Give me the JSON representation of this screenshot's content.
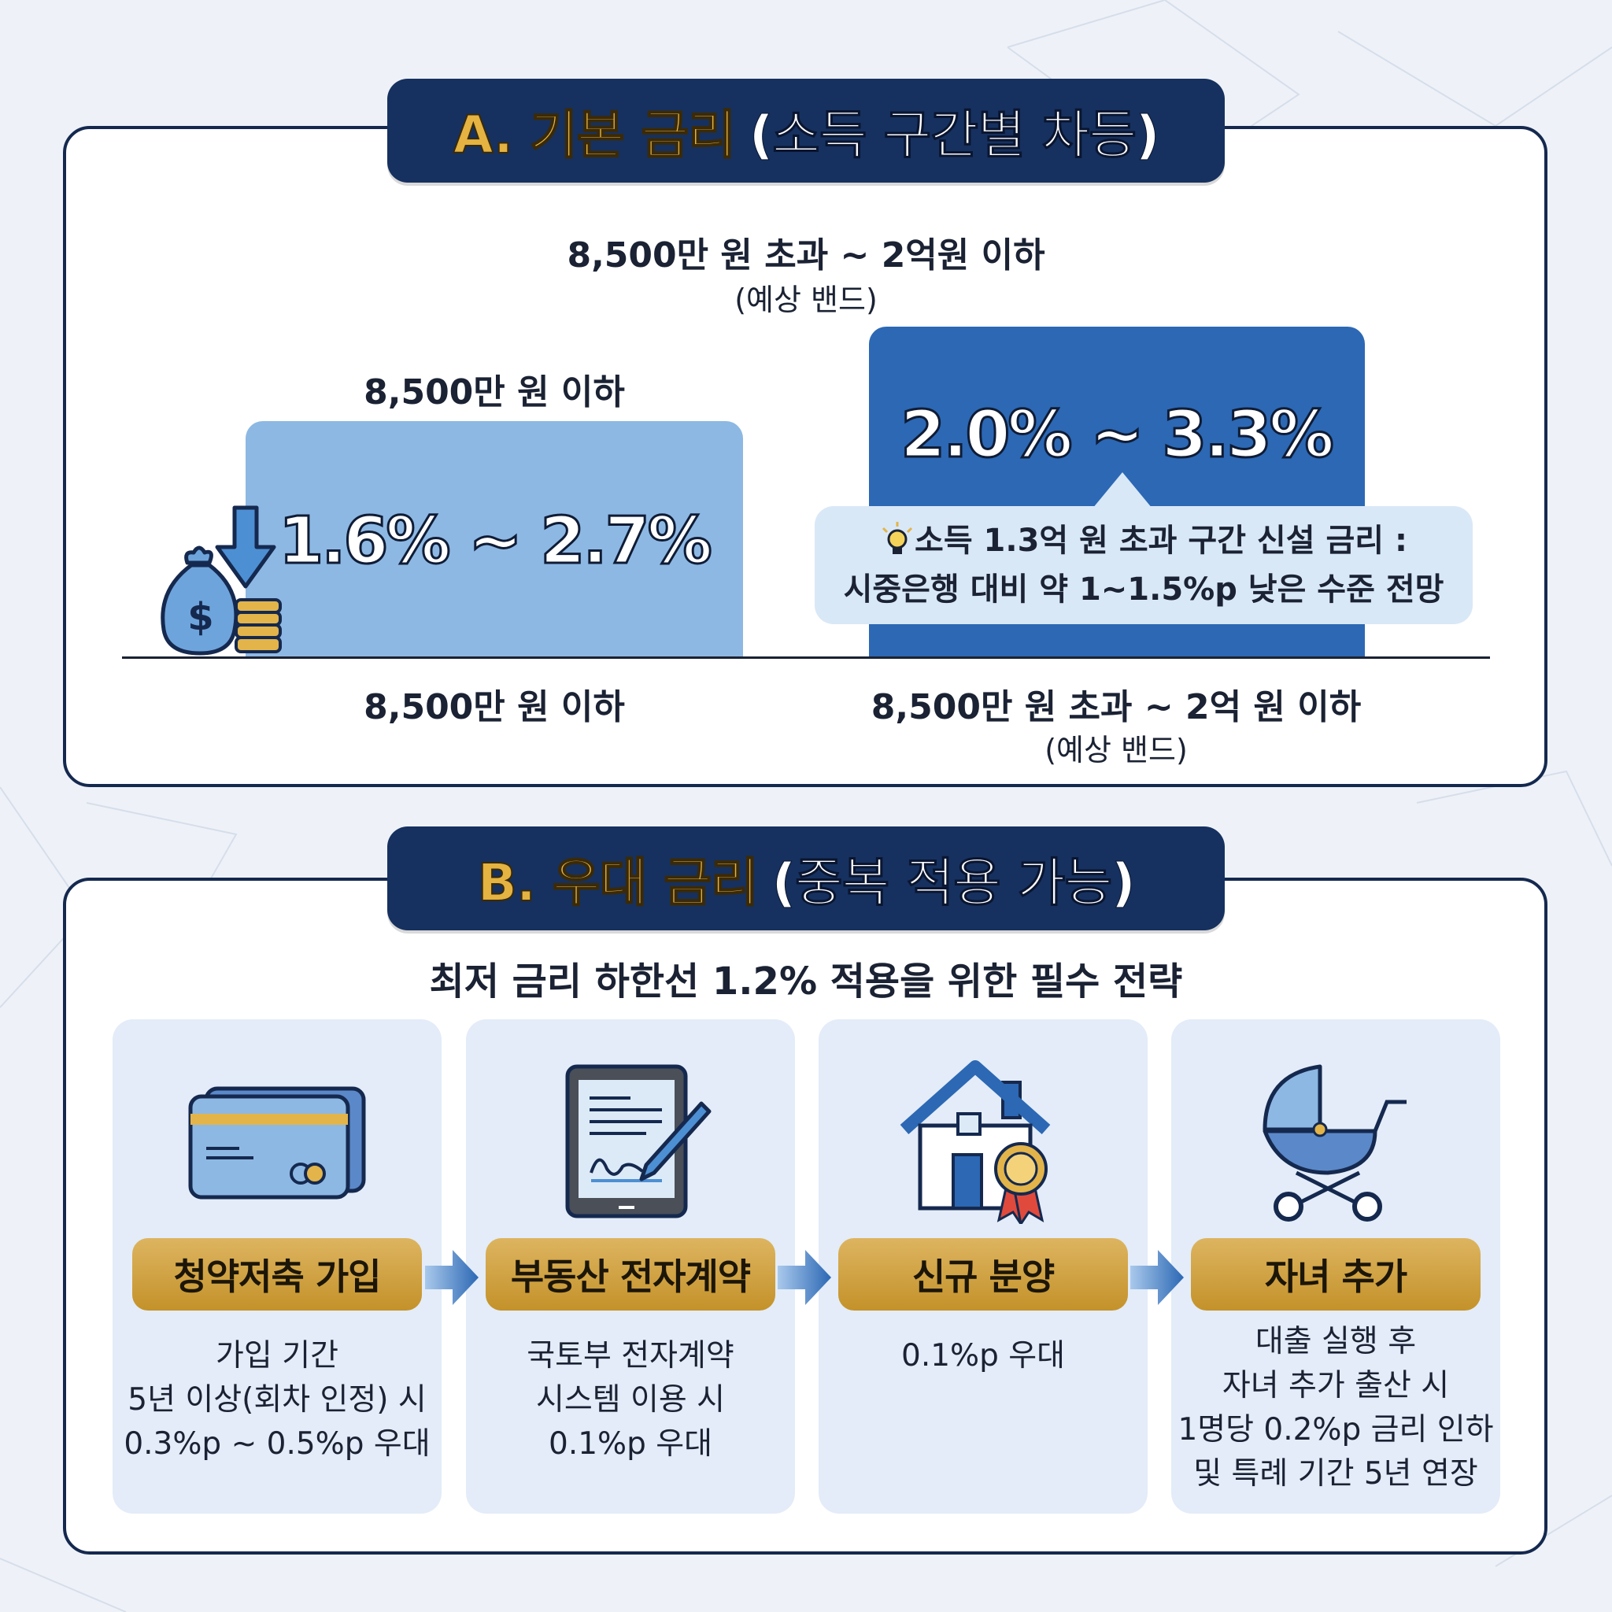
{
  "section_a": {
    "title_letter": "A. 기본 금리",
    "title_rest": "(소득 구간별 차등)",
    "left": {
      "top_label": "8,500만 원 이하",
      "rate": "1.6% ~ 2.7%",
      "bottom_label": "8,500만 원 이하"
    },
    "right": {
      "top_label": "8,500만 원 초과 ~ 2억원 이하",
      "top_sub": "(예상 밴드)",
      "rate": "2.0% ~ 3.3%",
      "bottom_label": "8,500만 원 초과 ~ 2억 원 이하",
      "bottom_sub": "(예상 밴드)"
    },
    "note": {
      "line1": "소득 1.3억 원 초과 구간 신설 금리 :",
      "line2": "시중은행 대비 약 1~1.5%p 낮은 수준 전망"
    },
    "colors": {
      "bar_light": "#8db8e3",
      "bar_dark": "#2c68b4",
      "banner": "#16315f",
      "gold": "#e4b341"
    }
  },
  "section_b": {
    "title_letter": "B. 우대 금리",
    "title_rest": "(중복 적용 가능)",
    "subtitle": "최저 금리 하한선 1.2% 적용을 위한 필수 전략",
    "cards": [
      {
        "icon": "credit-card-icon",
        "label": "청약저축 가입",
        "desc": [
          "가입 기간",
          "5년 이상(회차 인정) 시",
          "0.3%p ~ 0.5%p 우대"
        ]
      },
      {
        "icon": "tablet-contract-icon",
        "label": "부동산 전자계약",
        "desc": [
          "국토부 전자계약",
          "시스템 이용 시",
          "0.1%p 우대"
        ]
      },
      {
        "icon": "house-badge-icon",
        "label": "신규 분양",
        "desc": [
          "0.1%p 우대"
        ]
      },
      {
        "icon": "stroller-icon",
        "label": "자녀 추가",
        "desc": [
          "대출 실행 후",
          "자녀 추가 출산 시",
          "1명당 0.2%p 금리 인하",
          "및 특례 기간 5년 연장"
        ]
      }
    ]
  }
}
